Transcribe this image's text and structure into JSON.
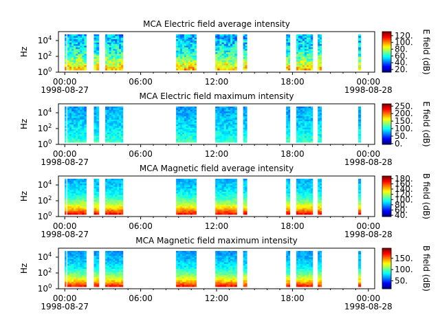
{
  "figure": {
    "background": "#ffffff"
  },
  "chart_data": [
    {
      "type": "heatmap",
      "title": "MCA  Electric field average intensity",
      "ylabel": "Hz",
      "colorbar_label": "E field (dB)",
      "colorbar_ticks": [
        "20.",
        "40.",
        "60.",
        "80.",
        "100.",
        "120."
      ],
      "colorbar_range": [
        12,
        132
      ],
      "yticks": [
        {
          "base": "10",
          "exp": "0"
        },
        {
          "base": "10",
          "exp": "2"
        },
        {
          "base": "10",
          "exp": "4"
        }
      ],
      "xticks": [
        {
          "top": "00:00",
          "bottom": "1998-08-27"
        },
        {
          "top": "06:00",
          "bottom": ""
        },
        {
          "top": "12:00",
          "bottom": ""
        },
        {
          "top": "18:00",
          "bottom": ""
        },
        {
          "top": "00:00",
          "bottom": "1998-08-28"
        }
      ],
      "x_range_hours": [
        -0.5,
        24.5
      ],
      "data_hours": [
        [
          0.0,
          0.1
        ],
        [
          0.2,
          1.7
        ],
        [
          2.3,
          2.7
        ],
        [
          3.2,
          4.6
        ],
        [
          8.8,
          10.4
        ],
        [
          11.9,
          13.6
        ],
        [
          14.1,
          14.4
        ],
        [
          17.5,
          17.8
        ],
        [
          18.3,
          19.6
        ],
        [
          20.0,
          20.3
        ],
        [
          23.2,
          23.4
        ]
      ],
      "intensity": {
        "base": 0.45,
        "low_freq": 0.25,
        "high_freq_drop": 0.15,
        "noise": 0.12
      }
    },
    {
      "type": "heatmap",
      "title": "MCA  Electric field maximum intensity",
      "ylabel": "Hz",
      "colorbar_label": "E field (dB)",
      "colorbar_ticks": [
        "0.",
        "50.",
        "100.",
        "150.",
        "200.",
        "250."
      ],
      "colorbar_range": [
        -5,
        265
      ],
      "yticks": [
        {
          "base": "10",
          "exp": "0"
        },
        {
          "base": "10",
          "exp": "2"
        },
        {
          "base": "10",
          "exp": "4"
        }
      ],
      "xticks": [
        {
          "top": "00:00",
          "bottom": "1998-08-27"
        },
        {
          "top": "06:00",
          "bottom": ""
        },
        {
          "top": "12:00",
          "bottom": ""
        },
        {
          "top": "18:00",
          "bottom": ""
        },
        {
          "top": "00:00",
          "bottom": "1998-08-28"
        }
      ],
      "x_range_hours": [
        -0.5,
        24.5
      ],
      "data_hours": [
        [
          0.0,
          0.1
        ],
        [
          0.2,
          1.7
        ],
        [
          2.3,
          2.7
        ],
        [
          3.2,
          4.6
        ],
        [
          8.8,
          10.4
        ],
        [
          11.9,
          13.6
        ],
        [
          14.1,
          14.4
        ],
        [
          17.5,
          17.8
        ],
        [
          18.3,
          19.6
        ],
        [
          20.0,
          20.3
        ],
        [
          23.2,
          23.4
        ]
      ],
      "intensity": {
        "base": 0.38,
        "low_freq": 0.05,
        "high_freq_drop": 0.1,
        "noise": 0.06
      }
    },
    {
      "type": "heatmap",
      "title": "MCA  Magnetic field average intensity",
      "ylabel": "Hz",
      "colorbar_label": "B field (dB)",
      "colorbar_ticks": [
        "40.",
        "60.",
        "80.",
        "100.",
        "120.",
        "140.",
        "160.",
        "180."
      ],
      "colorbar_range": [
        35,
        190
      ],
      "yticks": [
        {
          "base": "10",
          "exp": "0"
        },
        {
          "base": "10",
          "exp": "2"
        },
        {
          "base": "10",
          "exp": "4"
        }
      ],
      "xticks": [
        {
          "top": "00:00",
          "bottom": "1998-08-27"
        },
        {
          "top": "06:00",
          "bottom": ""
        },
        {
          "top": "12:00",
          "bottom": ""
        },
        {
          "top": "18:00",
          "bottom": ""
        },
        {
          "top": "00:00",
          "bottom": "1998-08-28"
        }
      ],
      "x_range_hours": [
        -0.5,
        24.5
      ],
      "data_hours": [
        [
          0.0,
          0.1
        ],
        [
          0.2,
          1.7
        ],
        [
          2.3,
          2.7
        ],
        [
          3.2,
          4.6
        ],
        [
          8.8,
          10.4
        ],
        [
          11.9,
          13.6
        ],
        [
          14.1,
          14.4
        ],
        [
          17.5,
          17.8
        ],
        [
          18.3,
          19.6
        ],
        [
          20.0,
          20.3
        ],
        [
          23.2,
          23.4
        ]
      ],
      "intensity": {
        "base": 0.42,
        "low_freq": 0.45,
        "high_freq_drop": 0.12,
        "noise": 0.05
      }
    },
    {
      "type": "heatmap",
      "title": "MCA  Magnetic field maximum intensity",
      "ylabel": "Hz",
      "colorbar_label": "B field (dB)",
      "colorbar_ticks": [
        "50.",
        "100.",
        "150."
      ],
      "colorbar_range": [
        15,
        195
      ],
      "yticks": [
        {
          "base": "10",
          "exp": "0"
        },
        {
          "base": "10",
          "exp": "2"
        },
        {
          "base": "10",
          "exp": "4"
        }
      ],
      "xticks": [
        {
          "top": "00:00",
          "bottom": "1998-08-27"
        },
        {
          "top": "06:00",
          "bottom": ""
        },
        {
          "top": "12:00",
          "bottom": ""
        },
        {
          "top": "18:00",
          "bottom": ""
        },
        {
          "top": "00:00",
          "bottom": "1998-08-28"
        }
      ],
      "x_range_hours": [
        -0.5,
        24.5
      ],
      "data_hours": [
        [
          0.0,
          0.1
        ],
        [
          0.2,
          1.7
        ],
        [
          2.3,
          2.7
        ],
        [
          3.2,
          4.6
        ],
        [
          8.8,
          10.4
        ],
        [
          11.9,
          13.6
        ],
        [
          14.1,
          14.4
        ],
        [
          17.5,
          17.8
        ],
        [
          18.3,
          19.6
        ],
        [
          20.0,
          20.3
        ],
        [
          23.2,
          23.4
        ]
      ],
      "intensity": {
        "base": 0.4,
        "low_freq": 0.45,
        "high_freq_drop": 0.12,
        "noise": 0.05
      }
    }
  ]
}
